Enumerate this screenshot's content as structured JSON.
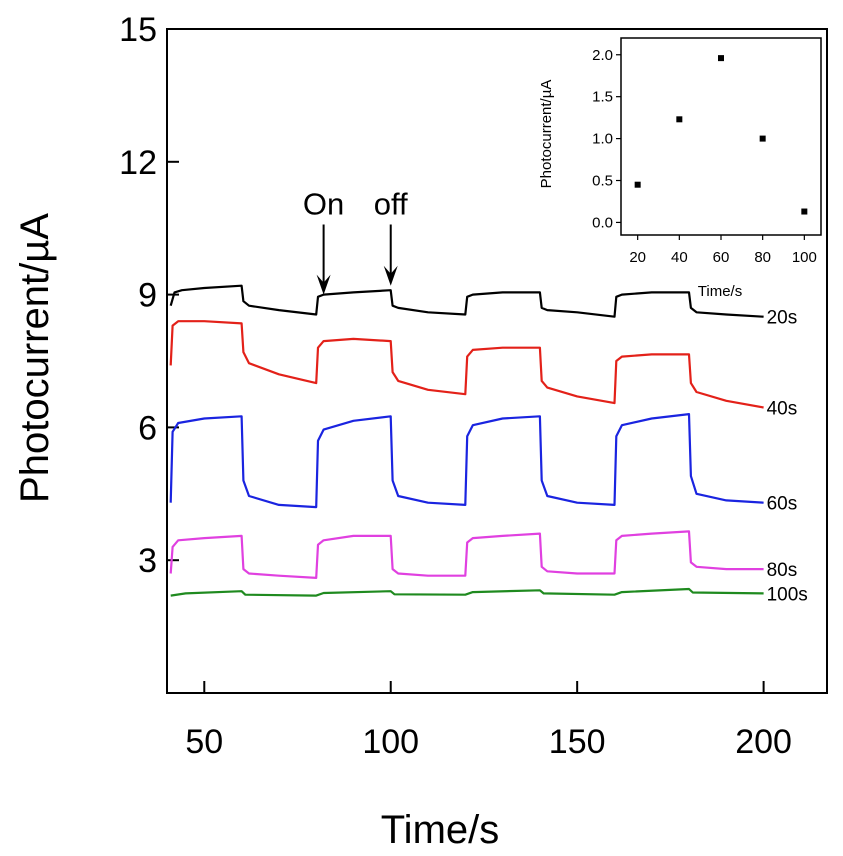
{
  "chart_data": [
    {
      "type": "line",
      "title": "",
      "xlabel": "Time/s",
      "ylabel": "Photocurrent/µA",
      "xlim": [
        40,
        217
      ],
      "ylim": [
        0,
        15
      ],
      "xticks": [
        50,
        100,
        150,
        200
      ],
      "yticks": [
        3,
        6,
        9,
        12,
        15
      ],
      "grid": false,
      "annotations": [
        {
          "text": "On",
          "x": 82,
          "arrow_from_y": 10.9,
          "arrow_to_y": 9.0
        },
        {
          "text": "off",
          "x": 100,
          "arrow_from_y": 10.9,
          "arrow_to_y": 9.2
        }
      ],
      "series": [
        {
          "name": "20s",
          "color": "#000000",
          "label_x": 200,
          "points": [
            [
              41,
              8.75
            ],
            [
              42,
              9.05
            ],
            [
              44,
              9.1
            ],
            [
              50,
              9.15
            ],
            [
              60,
              9.2
            ],
            [
              60.5,
              8.85
            ],
            [
              62,
              8.75
            ],
            [
              70,
              8.65
            ],
            [
              80,
              8.55
            ],
            [
              80.5,
              8.95
            ],
            [
              82,
              9.0
            ],
            [
              90,
              9.05
            ],
            [
              100,
              9.1
            ],
            [
              100.5,
              8.75
            ],
            [
              102,
              8.7
            ],
            [
              110,
              8.6
            ],
            [
              120,
              8.55
            ],
            [
              120.5,
              8.95
            ],
            [
              122,
              9.0
            ],
            [
              130,
              9.05
            ],
            [
              140,
              9.05
            ],
            [
              140.5,
              8.7
            ],
            [
              142,
              8.65
            ],
            [
              150,
              8.6
            ],
            [
              160,
              8.5
            ],
            [
              160.5,
              8.95
            ],
            [
              162,
              9.0
            ],
            [
              170,
              9.05
            ],
            [
              180,
              9.05
            ],
            [
              180.5,
              8.7
            ],
            [
              182,
              8.6
            ],
            [
              190,
              8.55
            ],
            [
              200,
              8.5
            ]
          ]
        },
        {
          "name": "40s",
          "color": "#e32119",
          "label_x": 200,
          "points": [
            [
              41,
              7.4
            ],
            [
              41.5,
              8.3
            ],
            [
              43,
              8.4
            ],
            [
              50,
              8.4
            ],
            [
              60,
              8.35
            ],
            [
              60.5,
              7.7
            ],
            [
              62,
              7.45
            ],
            [
              70,
              7.2
            ],
            [
              80,
              7.0
            ],
            [
              80.5,
              7.8
            ],
            [
              82,
              7.95
            ],
            [
              90,
              8.0
            ],
            [
              100,
              7.95
            ],
            [
              100.5,
              7.25
            ],
            [
              102,
              7.05
            ],
            [
              110,
              6.85
            ],
            [
              120,
              6.75
            ],
            [
              120.5,
              7.6
            ],
            [
              122,
              7.75
            ],
            [
              130,
              7.8
            ],
            [
              140,
              7.8
            ],
            [
              140.5,
              7.05
            ],
            [
              142,
              6.9
            ],
            [
              150,
              6.7
            ],
            [
              160,
              6.55
            ],
            [
              160.5,
              7.5
            ],
            [
              162,
              7.6
            ],
            [
              170,
              7.65
            ],
            [
              180,
              7.65
            ],
            [
              180.5,
              7.0
            ],
            [
              182,
              6.8
            ],
            [
              190,
              6.6
            ],
            [
              200,
              6.45
            ]
          ]
        },
        {
          "name": "60s",
          "color": "#1a24e0",
          "label_x": 200,
          "points": [
            [
              41,
              4.3
            ],
            [
              41.5,
              5.9
            ],
            [
              43,
              6.1
            ],
            [
              50,
              6.2
            ],
            [
              60,
              6.25
            ],
            [
              60.5,
              4.8
            ],
            [
              62,
              4.45
            ],
            [
              70,
              4.25
            ],
            [
              80,
              4.2
            ],
            [
              80.5,
              5.7
            ],
            [
              82,
              5.95
            ],
            [
              90,
              6.15
            ],
            [
              100,
              6.25
            ],
            [
              100.5,
              4.8
            ],
            [
              102,
              4.45
            ],
            [
              110,
              4.3
            ],
            [
              120,
              4.25
            ],
            [
              120.5,
              5.8
            ],
            [
              122,
              6.05
            ],
            [
              130,
              6.2
            ],
            [
              140,
              6.25
            ],
            [
              140.5,
              4.8
            ],
            [
              142,
              4.45
            ],
            [
              150,
              4.3
            ],
            [
              160,
              4.25
            ],
            [
              160.5,
              5.8
            ],
            [
              162,
              6.05
            ],
            [
              170,
              6.2
            ],
            [
              180,
              6.3
            ],
            [
              180.5,
              4.9
            ],
            [
              182,
              4.5
            ],
            [
              190,
              4.35
            ],
            [
              200,
              4.3
            ]
          ]
        },
        {
          "name": "80s",
          "color": "#e040e0",
          "label_x": 200,
          "points": [
            [
              41,
              2.7
            ],
            [
              41.5,
              3.3
            ],
            [
              43,
              3.45
            ],
            [
              50,
              3.5
            ],
            [
              60,
              3.55
            ],
            [
              60.5,
              2.8
            ],
            [
              62,
              2.7
            ],
            [
              70,
              2.65
            ],
            [
              80,
              2.6
            ],
            [
              80.5,
              3.35
            ],
            [
              82,
              3.45
            ],
            [
              90,
              3.55
            ],
            [
              100,
              3.55
            ],
            [
              100.5,
              2.8
            ],
            [
              102,
              2.7
            ],
            [
              110,
              2.65
            ],
            [
              120,
              2.65
            ],
            [
              120.5,
              3.4
            ],
            [
              122,
              3.5
            ],
            [
              130,
              3.55
            ],
            [
              140,
              3.6
            ],
            [
              140.5,
              2.85
            ],
            [
              142,
              2.75
            ],
            [
              150,
              2.7
            ],
            [
              160,
              2.7
            ],
            [
              160.5,
              3.45
            ],
            [
              162,
              3.55
            ],
            [
              170,
              3.6
            ],
            [
              180,
              3.65
            ],
            [
              180.5,
              2.95
            ],
            [
              182,
              2.85
            ],
            [
              190,
              2.8
            ],
            [
              200,
              2.8
            ]
          ]
        },
        {
          "name": "100s",
          "color": "#1f8a1f",
          "label_x": 200,
          "points": [
            [
              41,
              2.2
            ],
            [
              45,
              2.25
            ],
            [
              60,
              2.3
            ],
            [
              61,
              2.22
            ],
            [
              80,
              2.2
            ],
            [
              82,
              2.26
            ],
            [
              100,
              2.3
            ],
            [
              101,
              2.23
            ],
            [
              120,
              2.22
            ],
            [
              122,
              2.28
            ],
            [
              140,
              2.32
            ],
            [
              141,
              2.25
            ],
            [
              160,
              2.22
            ],
            [
              162,
              2.28
            ],
            [
              180,
              2.35
            ],
            [
              181,
              2.27
            ],
            [
              200,
              2.25
            ]
          ]
        }
      ]
    },
    {
      "type": "scatter",
      "title": "",
      "xlabel": "Time/s",
      "ylabel": "Photocurrent/µA",
      "xlim": [
        12,
        108
      ],
      "ylim": [
        -0.15,
        2.2
      ],
      "xticks": [
        20,
        40,
        60,
        80,
        100
      ],
      "yticks": [
        0.0,
        0.5,
        1.0,
        1.5,
        2.0
      ],
      "ytick_labels": [
        "0.0",
        "0.5",
        "1.0",
        "1.5",
        "2.0"
      ],
      "legend": "top-right inset",
      "x": [
        20,
        40,
        60,
        80,
        100
      ],
      "y": [
        0.45,
        1.23,
        1.96,
        1.0,
        0.13
      ]
    }
  ]
}
